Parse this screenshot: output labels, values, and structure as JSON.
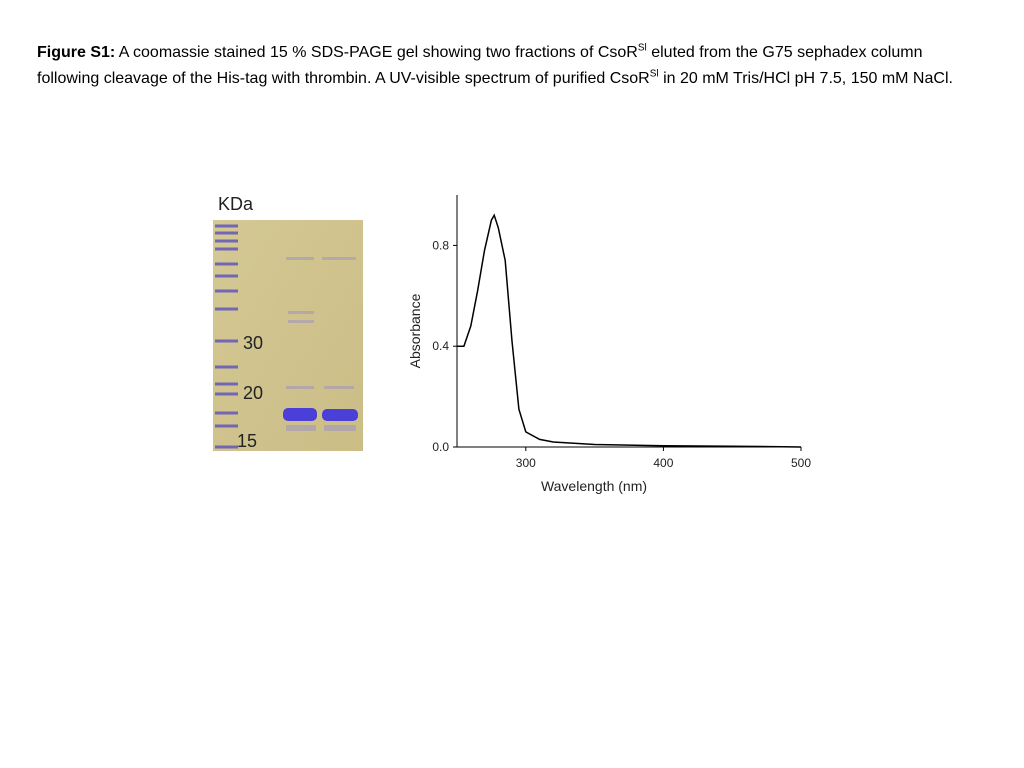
{
  "caption": {
    "label": "Figure S1:",
    "part1": " A  coomassie stained 15 % SDS-PAGE gel showing two fractions of CsoR",
    "sup1": "Sl",
    "part2": " eluted from the G75 sephadex column following cleavage of the His-tag with thrombin.  A  UV-visible spectrum of purified CsoR",
    "sup2": "Sl",
    "part3": " in 20 mM Tris/HCl pH 7.5, 150 mM NaCl."
  },
  "gel": {
    "unit": "KDa",
    "markers": [
      "30",
      "20",
      "15"
    ]
  },
  "chart_data": {
    "type": "line",
    "xlabel": "Wavelength (nm)",
    "ylabel": "Absorbance",
    "color": "#000000",
    "x": [
      250,
      255,
      260,
      265,
      270,
      275,
      277,
      280,
      285,
      290,
      295,
      300,
      310,
      320,
      350,
      400,
      450,
      500
    ],
    "values": [
      0.4,
      0.4,
      0.48,
      0.62,
      0.78,
      0.9,
      0.92,
      0.87,
      0.74,
      0.42,
      0.15,
      0.06,
      0.03,
      0.02,
      0.01,
      0.005,
      0.003,
      0.0
    ],
    "xlim": [
      250,
      500
    ],
    "ylim": [
      0,
      1.0
    ],
    "xticks": [
      300,
      400,
      500
    ],
    "yticks": [
      {
        "value": 0,
        "label": "0.0"
      },
      0.4,
      0.8
    ]
  }
}
